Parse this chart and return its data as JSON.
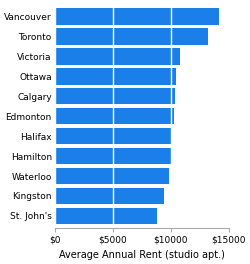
{
  "cities": [
    "Vancouver",
    "Toronto",
    "Victoria",
    "Ottawa",
    "Calgary",
    "Edmonton",
    "Halifax",
    "Hamilton",
    "Waterloo",
    "Kingston",
    "St. John's"
  ],
  "values": [
    14200,
    13200,
    10800,
    10500,
    10400,
    10300,
    10000,
    10000,
    9900,
    9400,
    8800
  ],
  "bar_color": "#1a7fe8",
  "xlabel": "Average Annual Rent (studio apt.)",
  "xlim": [
    0,
    15000
  ],
  "xticks": [
    0,
    5000,
    10000,
    15000
  ],
  "xtick_labels": [
    "$0",
    "$5000",
    "$10000",
    "$15000"
  ],
  "background_color": "#ffffff",
  "xlabel_fontsize": 7,
  "tick_fontsize": 6.5,
  "bar_height": 0.82
}
